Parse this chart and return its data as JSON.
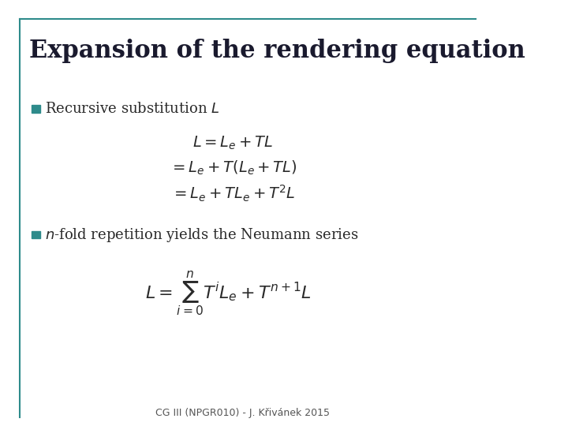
{
  "title": "Expansion of the rendering equation",
  "title_color": "#1a1a2e",
  "title_fontsize": 22,
  "background_color": "#ffffff",
  "bullet_color": "#2e8b8b",
  "bullet1_text": "Recursive substitution $L$",
  "bullet2_text": "$n$-fold repetition yields the Neumann series",
  "eq1": "$L = L_e + TL$",
  "eq2": "$= L_e + T\\left(L_e + TL\\right)$",
  "eq3": "$= L_e + TL_e + T^2L$",
  "eq4": "$L = \\sum_{i=0}^{n} T^i L_e + T^{n+1}L$",
  "footer": "CG III (NPGR010) - J. Křivánek 2015",
  "footer_fontsize": 9,
  "header_line_color": "#2e8b8b",
  "border_line_color": "#2e8b8b"
}
